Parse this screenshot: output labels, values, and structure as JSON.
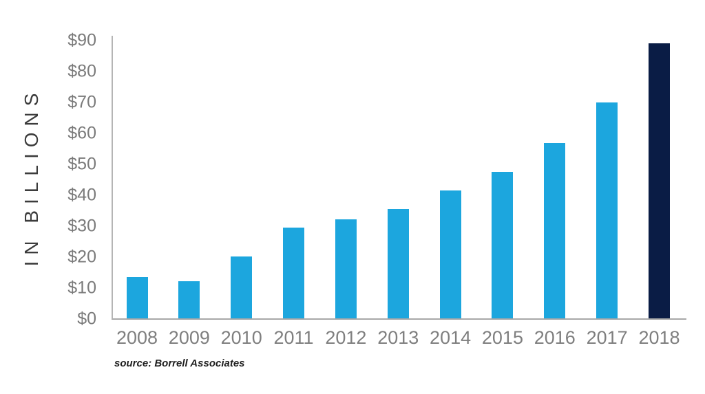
{
  "chart_data": {
    "type": "bar",
    "title": "",
    "ylabel": "IN BILLIONS",
    "xlabel": "",
    "categories": [
      "2008",
      "2009",
      "2010",
      "2011",
      "2012",
      "2013",
      "2014",
      "2015",
      "2016",
      "2017",
      "2018"
    ],
    "values": [
      13.4,
      12.1,
      20.1,
      29.3,
      32.1,
      35.4,
      41.3,
      47.4,
      56.6,
      69.7,
      88.9
    ],
    "ylim": [
      0,
      90
    ],
    "ytick_step": 10,
    "ytick_prefix": "$",
    "grid": false,
    "legend": "none",
    "highlight_category": "2018",
    "bar_color": "#1ca6de",
    "highlight_bar_color": "#0a1c45",
    "source_note": "source: Borrell Associates"
  }
}
